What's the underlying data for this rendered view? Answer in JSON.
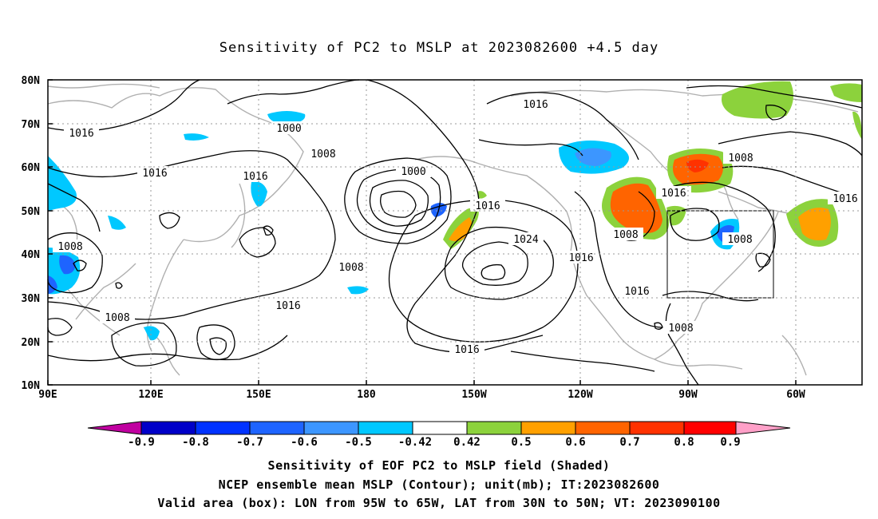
{
  "title": "Sensitivity of PC2 to MSLP at 2023082600 +4.5 day",
  "lat_labels": [
    "80N",
    "70N",
    "60N",
    "50N",
    "40N",
    "30N",
    "20N",
    "10N"
  ],
  "lon_labels": [
    "90E",
    "120E",
    "150E",
    "180",
    "150W",
    "120W",
    "90W",
    "60W"
  ],
  "contour_labels": [
    "1016",
    "1016",
    "1000",
    "1016",
    "1008",
    "1016",
    "1000",
    "1016",
    "1024",
    "1008",
    "1008",
    "1016",
    "1008",
    "1016",
    "1016",
    "1016",
    "1016",
    "1008",
    "1008",
    "1016",
    "1008",
    "1008",
    "1016"
  ],
  "colorbar": {
    "labels": [
      "-0.9",
      "-0.8",
      "-0.7",
      "-0.6",
      "-0.5",
      "-0.42",
      "0.42",
      "0.5",
      "0.6",
      "0.7",
      "0.8",
      "0.9"
    ],
    "colors": [
      "#c000a0",
      "#0000c8",
      "#0032ff",
      "#1e64ff",
      "#3c96ff",
      "#00c8ff",
      "#ffffff",
      "#8cd23c",
      "#ffa000",
      "#ff6400",
      "#ff3200",
      "#ff0000",
      "#ffa0c8"
    ]
  },
  "valid_box": {
    "lon_from": "95W",
    "lon_to": "65W",
    "lat_from": "30N",
    "lat_to": "50N"
  },
  "captions": {
    "line1": "Sensitivity of EOF PC2 to MSLP field (Shaded)",
    "line2": "NCEP ensemble mean MSLP (Contour); unit(mb); IT:2023082600",
    "line3": "Valid area (box): LON from 95W to 65W, LAT from 30N to 50N; VT: 2023090100"
  }
}
